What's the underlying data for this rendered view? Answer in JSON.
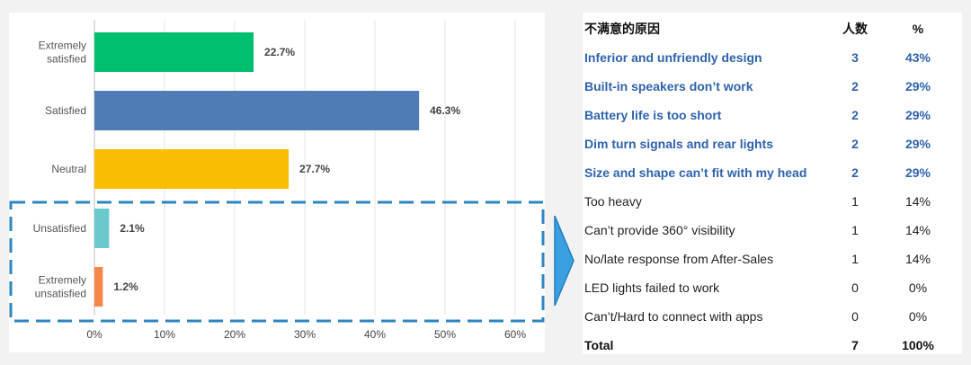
{
  "chart_data": {
    "type": "bar",
    "orientation": "horizontal",
    "categories": [
      "Extremely satisfied",
      "Satisfied",
      "Neutral",
      "Unsatisfied",
      "Extremely unsatisfied"
    ],
    "category_lines": [
      [
        "Extremely",
        "satisfied"
      ],
      [
        "Satisfied"
      ],
      [
        "Neutral"
      ],
      [
        "Unsatisfied"
      ],
      [
        "Extremely",
        "unsatisfied"
      ]
    ],
    "values": [
      22.7,
      46.3,
      27.7,
      2.1,
      1.2
    ],
    "value_labels": [
      "22.7%",
      "46.3%",
      "27.7%",
      "2.1%",
      "1.2%"
    ],
    "colors": [
      "#00bf6f",
      "#507cb6",
      "#f9be00",
      "#6bc8cd",
      "#f4874b"
    ],
    "xlim": [
      0,
      60
    ],
    "xticks": [
      0,
      10,
      20,
      30,
      40,
      50,
      60
    ],
    "xtick_labels": [
      "0%",
      "10%",
      "20%",
      "30%",
      "40%",
      "50%",
      "60%"
    ],
    "grid": "vertical",
    "highlight_color": "#2e86c1",
    "title": "",
    "xlabel": "",
    "ylabel": ""
  },
  "table": {
    "headers": [
      "不满意的原因",
      "人数",
      "%"
    ],
    "rows": [
      {
        "reason": "Inferior and unfriendly design",
        "count": "3",
        "pct": "43%",
        "highlight": true
      },
      {
        "reason": "Built-in speakers don’t work",
        "count": "2",
        "pct": "29%",
        "highlight": true
      },
      {
        "reason": "Battery life is too short",
        "count": "2",
        "pct": "29%",
        "highlight": true
      },
      {
        "reason": "Dim turn signals and rear lights",
        "count": "2",
        "pct": "29%",
        "highlight": true
      },
      {
        "reason": "Size and shape can’t fit with my head",
        "count": "2",
        "pct": "29%",
        "highlight": true
      },
      {
        "reason": "Too heavy",
        "count": "1",
        "pct": "14%",
        "highlight": false
      },
      {
        "reason": "Can’t provide 360° visibility",
        "count": "1",
        "pct": "14%",
        "highlight": false
      },
      {
        "reason": "No/late response from After-Sales",
        "count": "1",
        "pct": "14%",
        "highlight": false
      },
      {
        "reason": "LED lights failed to work",
        "count": "0",
        "pct": "0%",
        "highlight": false
      },
      {
        "reason": "Can’t/Hard to connect with apps",
        "count": "0",
        "pct": "0%",
        "highlight": false
      }
    ],
    "total": {
      "label": "Total",
      "count": "7",
      "pct": "100%"
    },
    "highlight_color": "#2e63ad"
  },
  "arrow": {
    "color": "#3aa0e0",
    "icon": "chevron-right-arrow-icon"
  }
}
